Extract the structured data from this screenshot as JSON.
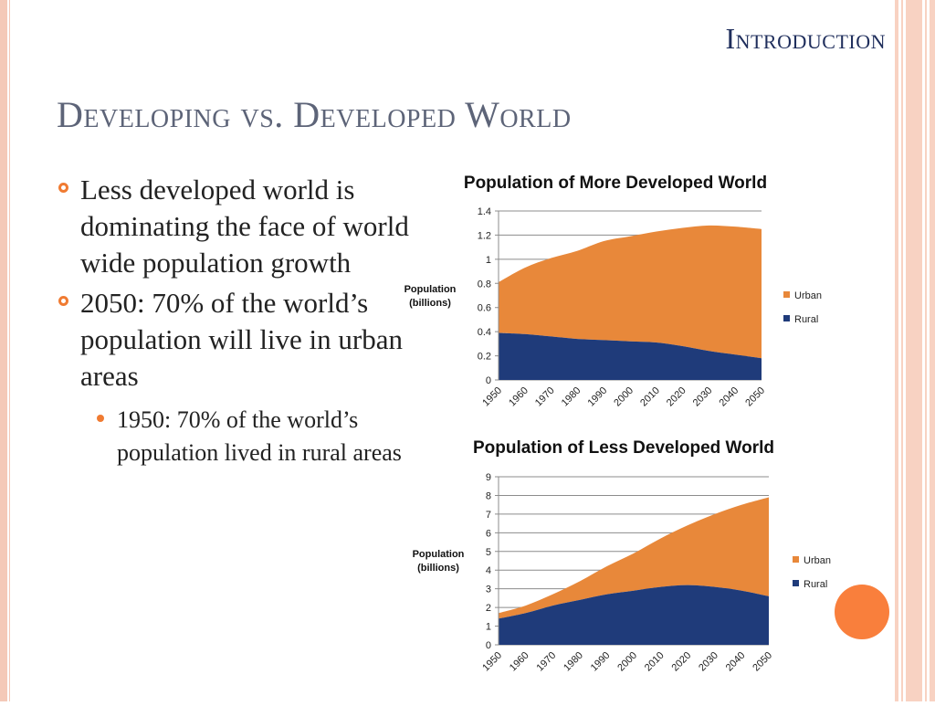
{
  "section_label": "Introduction",
  "title": "Developing vs. Developed World",
  "bullets": [
    {
      "text": "Less developed world is dominating the face of world wide population growth"
    },
    {
      "text": "2050: 70% of the world’s population will live in urban areas",
      "sub": [
        {
          "text": "1950: 70% of the world’s population lived in rural areas"
        }
      ]
    }
  ],
  "colors": {
    "urban": "#e8883a",
    "rural": "#1f3b7a",
    "accent": "#f07b32",
    "title": "#5d6478",
    "section": "#1f2e5c"
  },
  "chart_data": [
    {
      "type": "area",
      "title": "Population of More Developed World",
      "ylabel": "Population (billions)",
      "x": [
        "1950",
        "1960",
        "1970",
        "1980",
        "1990",
        "2000",
        "2010",
        "2020",
        "2030",
        "2040",
        "2050"
      ],
      "ylim": [
        0,
        1.4
      ],
      "yticks": [
        "0",
        "0.2",
        "0.4",
        "0.6",
        "0.8",
        "1",
        "1.2",
        "1.4"
      ],
      "stacked": true,
      "legend_position": "right",
      "series": [
        {
          "name": "Urban",
          "values": [
            0.42,
            0.55,
            0.65,
            0.73,
            0.82,
            0.87,
            0.92,
            0.98,
            1.04,
            1.06,
            1.07
          ]
        },
        {
          "name": "Rural",
          "values": [
            0.39,
            0.38,
            0.36,
            0.34,
            0.33,
            0.32,
            0.31,
            0.28,
            0.24,
            0.21,
            0.18
          ]
        }
      ]
    },
    {
      "type": "area",
      "title": "Population of Less Developed World",
      "ylabel": "Population (billions)",
      "x": [
        "1950",
        "1960",
        "1970",
        "1980",
        "1990",
        "2000",
        "2010",
        "2020",
        "2030",
        "2040",
        "2050"
      ],
      "ylim": [
        0,
        9
      ],
      "yticks": [
        "0",
        "1",
        "2",
        "3",
        "4",
        "5",
        "6",
        "7",
        "8",
        "9"
      ],
      "stacked": true,
      "legend_position": "right",
      "series": [
        {
          "name": "Urban",
          "values": [
            0.3,
            0.4,
            0.6,
            1.0,
            1.5,
            2.0,
            2.6,
            3.2,
            3.9,
            4.6,
            5.3
          ]
        },
        {
          "name": "Rural",
          "values": [
            1.4,
            1.7,
            2.1,
            2.4,
            2.7,
            2.9,
            3.1,
            3.2,
            3.1,
            2.9,
            2.6
          ]
        }
      ]
    }
  ]
}
